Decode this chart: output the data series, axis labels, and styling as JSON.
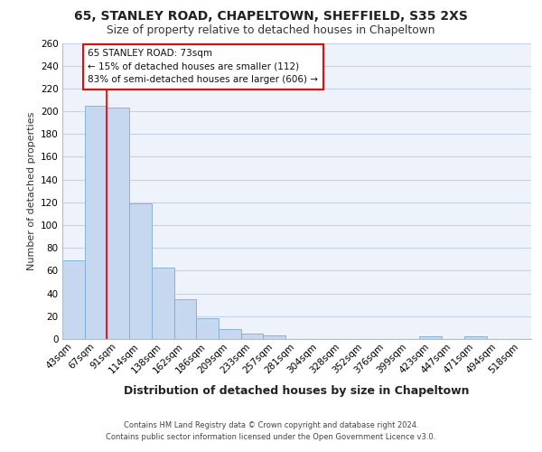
{
  "title_line1": "65, STANLEY ROAD, CHAPELTOWN, SHEFFIELD, S35 2XS",
  "title_line2": "Size of property relative to detached houses in Chapeltown",
  "xlabel": "Distribution of detached houses by size in Chapeltown",
  "ylabel": "Number of detached properties",
  "footer_line1": "Contains HM Land Registry data © Crown copyright and database right 2024.",
  "footer_line2": "Contains public sector information licensed under the Open Government Licence v3.0.",
  "bins": [
    "43sqm",
    "67sqm",
    "91sqm",
    "114sqm",
    "138sqm",
    "162sqm",
    "186sqm",
    "209sqm",
    "233sqm",
    "257sqm",
    "281sqm",
    "304sqm",
    "328sqm",
    "352sqm",
    "376sqm",
    "399sqm",
    "423sqm",
    "447sqm",
    "471sqm",
    "494sqm",
    "518sqm"
  ],
  "values": [
    69,
    205,
    203,
    119,
    63,
    35,
    18,
    9,
    5,
    3,
    0,
    0,
    0,
    0,
    0,
    0,
    2,
    0,
    2,
    0,
    0
  ],
  "bar_color": "#c5d8f0",
  "bar_edge_color": "#7aadd4",
  "annotation_title": "65 STANLEY ROAD: 73sqm",
  "annotation_line1": "← 15% of detached houses are smaller (112)",
  "annotation_line2": "83% of semi-detached houses are larger (606) →",
  "ylim": [
    0,
    260
  ],
  "yticks": [
    0,
    20,
    40,
    60,
    80,
    100,
    120,
    140,
    160,
    180,
    200,
    220,
    240,
    260
  ],
  "background_color": "#eef2fa",
  "grid_color": "#c8d0e8"
}
